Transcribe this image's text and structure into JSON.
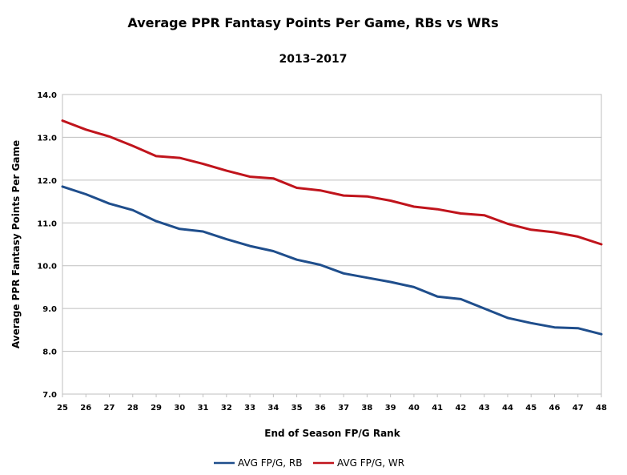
{
  "chart_data": {
    "type": "line",
    "title": "Average PPR Fantasy Points Per Game, RBs vs WRs",
    "subtitle": "2013–2017",
    "xlabel": "End of Season FP/G Rank",
    "ylabel": "Average PPR Fantasy Points Per Game",
    "x": [
      25,
      26,
      27,
      28,
      29,
      30,
      31,
      32,
      33,
      34,
      35,
      36,
      37,
      38,
      39,
      40,
      41,
      42,
      43,
      44,
      45,
      46,
      47,
      48
    ],
    "x_tick_labels": [
      "25",
      "26",
      "27",
      "28",
      "29",
      "30",
      "31",
      "32",
      "33",
      "34",
      "35",
      "36",
      "37",
      "38",
      "39",
      "40",
      "41",
      "42",
      "43",
      "44",
      "45",
      "46",
      "47",
      "48"
    ],
    "ylim": [
      7.0,
      14.0
    ],
    "y_ticks": [
      7.0,
      8.0,
      9.0,
      10.0,
      11.0,
      12.0,
      13.0,
      14.0
    ],
    "y_tick_labels": [
      "7.0",
      "8.0",
      "9.0",
      "10.0",
      "11.0",
      "12.0",
      "13.0",
      "14.0"
    ],
    "grid": true,
    "legend_position": "bottom",
    "series": [
      {
        "name": "AVG FP/G, RB",
        "color": "#1f4e8c",
        "values": [
          11.85,
          11.67,
          11.45,
          11.3,
          11.04,
          10.86,
          10.8,
          10.62,
          10.46,
          10.34,
          10.14,
          10.02,
          9.82,
          9.72,
          9.62,
          9.5,
          9.28,
          9.22,
          9.0,
          8.78,
          8.66,
          8.56,
          8.54,
          8.4
        ]
      },
      {
        "name": "AVG FP/G, WR",
        "color": "#c0141c",
        "values": [
          13.39,
          13.18,
          13.02,
          12.8,
          12.56,
          12.52,
          12.38,
          12.22,
          12.08,
          12.04,
          11.82,
          11.76,
          11.64,
          11.62,
          11.52,
          11.38,
          11.32,
          11.22,
          11.18,
          10.98,
          10.84,
          10.78,
          10.68,
          10.5
        ]
      }
    ]
  }
}
